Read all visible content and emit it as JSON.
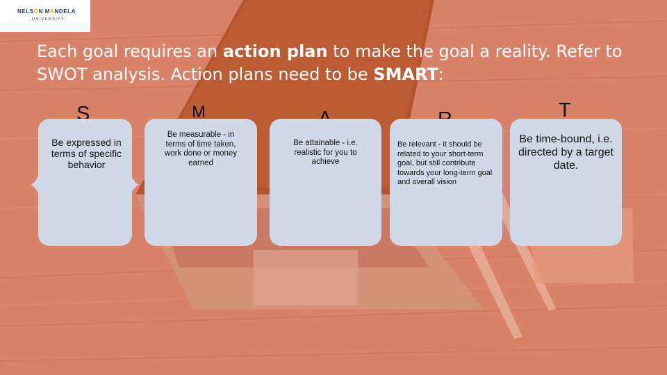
{
  "logo": {
    "name_part1": "NELS",
    "name_o": "O",
    "name_part2": "N M",
    "name_a": "A",
    "name_part3": "NDELA",
    "subtitle": "UNIVERSITY"
  },
  "heading": {
    "part1": "Each goal requires an ",
    "bold1": "action plan",
    "part2": " to make the goal a reality. Refer to SWOT analysis. Action plans need to be ",
    "bold2": "SMART",
    "part3": ":"
  },
  "smart": [
    {
      "letter": "S",
      "text": "Be expressed in terms of specific behavior"
    },
    {
      "letter": "M",
      "text": "Be measurable  - in terms of time taken, work done or money earned"
    },
    {
      "letter": "A",
      "text": "Be attainable  - i.e. realistic for you to achieve"
    },
    {
      "letter": "R",
      "text": "Be relevant  - it should be related to your short-term goal, but still contribute towards your long-term goal and overall vision"
    },
    {
      "letter": "T",
      "text": "Be time-bound, i.e. directed by a target date."
    }
  ],
  "colors": {
    "background": "#d9826a",
    "card": "#cfd8e6",
    "heading_text": "#ffffff",
    "logo_blue": "#1f3a5f",
    "logo_accent": "#e8a21b"
  }
}
